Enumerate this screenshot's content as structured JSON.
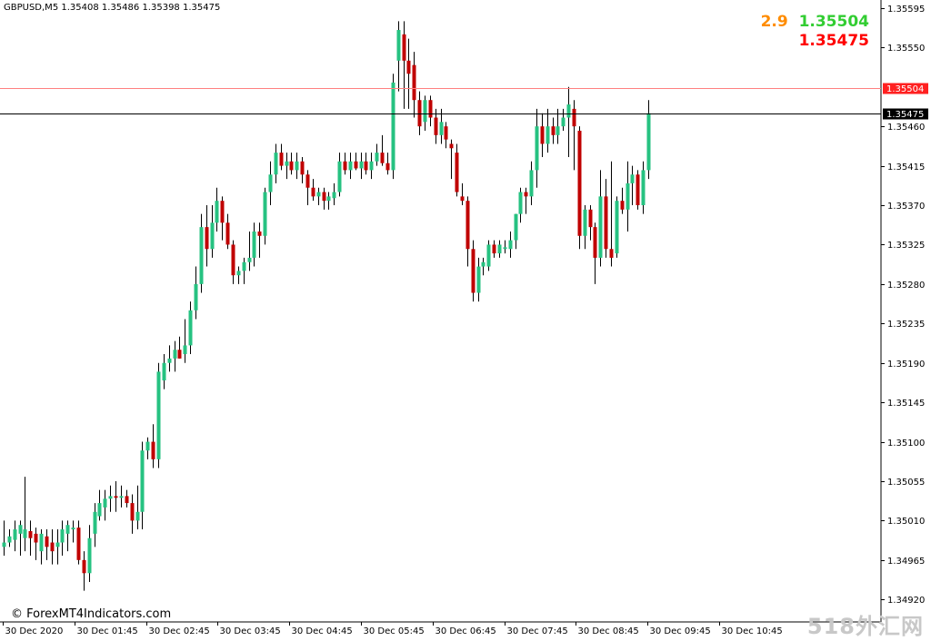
{
  "header": {
    "symbol": "GBPUSD,M5",
    "ohlc": "1.35408 1.35486 1.35398 1.35475"
  },
  "spread_panel": {
    "spread": "2.9",
    "ask": "1.35504",
    "bid": "1.35475",
    "spread_color": "#ff8c00",
    "ask_color": "#32cd32",
    "bid_color": "#ff0000"
  },
  "footer": {
    "copyright": "© ForexMT4Indicators.com",
    "watermark": "518外汇网"
  },
  "colors": {
    "bull": "#26c281",
    "bear": "#c00000",
    "wick": "#000000",
    "ask_line": "#ff8080",
    "bid_line": "#000000",
    "axis": "#000000"
  },
  "chart_data": {
    "type": "candlestick",
    "symbol": "GBPUSD",
    "timeframe": "M5",
    "ylim": [
      1.34913,
      1.35598
    ],
    "price_ticks": [
      "1.35595",
      "1.35550",
      "1.35460",
      "1.35415",
      "1.35370",
      "1.35325",
      "1.35280",
      "1.35235",
      "1.35190",
      "1.35145",
      "1.35100",
      "1.35055",
      "1.35010",
      "1.34965",
      "1.34920"
    ],
    "time_labels": [
      "30 Dec 2020",
      "30 Dec 01:45",
      "30 Dec 02:45",
      "30 Dec 03:45",
      "30 Dec 04:45",
      "30 Dec 05:45",
      "30 Dec 06:45",
      "30 Dec 07:45",
      "30 Dec 08:45",
      "30 Dec 09:45",
      "30 Dec 10:45"
    ],
    "levels": [
      {
        "name": "ask",
        "price": 1.35504,
        "label": "1.35504"
      },
      {
        "name": "bid",
        "price": 1.35475,
        "label": "1.35475"
      }
    ],
    "candles": [
      {
        "o": 1.3498,
        "h": 1.3501,
        "l": 1.3497,
        "c": 1.34985
      },
      {
        "o": 1.34985,
        "h": 1.35,
        "l": 1.3498,
        "c": 1.34992
      },
      {
        "o": 1.34988,
        "h": 1.3501,
        "l": 1.34975,
        "c": 1.35
      },
      {
        "o": 1.34995,
        "h": 1.3501,
        "l": 1.3497,
        "c": 1.35005
      },
      {
        "o": 1.3499,
        "h": 1.3506,
        "l": 1.34975,
        "c": 1.35
      },
      {
        "o": 1.34998,
        "h": 1.3501,
        "l": 1.3497,
        "c": 1.3499
      },
      {
        "o": 1.34995,
        "h": 1.35002,
        "l": 1.34965,
        "c": 1.34985
      },
      {
        "o": 1.34975,
        "h": 1.35,
        "l": 1.3496,
        "c": 1.34995
      },
      {
        "o": 1.34992,
        "h": 1.35,
        "l": 1.34965,
        "c": 1.3498
      },
      {
        "o": 1.34985,
        "h": 1.35,
        "l": 1.3496,
        "c": 1.34975
      },
      {
        "o": 1.3498,
        "h": 1.35,
        "l": 1.3496,
        "c": 1.34985
      },
      {
        "o": 1.34985,
        "h": 1.3501,
        "l": 1.3497,
        "c": 1.35
      },
      {
        "o": 1.34995,
        "h": 1.3501,
        "l": 1.34975,
        "c": 1.35005
      },
      {
        "o": 1.35,
        "h": 1.3501,
        "l": 1.34985,
        "c": 1.35002
      },
      {
        "o": 1.35002,
        "h": 1.3501,
        "l": 1.3496,
        "c": 1.34965
      },
      {
        "o": 1.34965,
        "h": 1.34975,
        "l": 1.3493,
        "c": 1.3495
      },
      {
        "o": 1.3495,
        "h": 1.35005,
        "l": 1.3494,
        "c": 1.3499
      },
      {
        "o": 1.34995,
        "h": 1.3503,
        "l": 1.3498,
        "c": 1.3502
      },
      {
        "o": 1.35015,
        "h": 1.35045,
        "l": 1.3501,
        "c": 1.3503
      },
      {
        "o": 1.35025,
        "h": 1.35045,
        "l": 1.3501,
        "c": 1.35035
      },
      {
        "o": 1.35035,
        "h": 1.3505,
        "l": 1.3502,
        "c": 1.35038
      },
      {
        "o": 1.35038,
        "h": 1.35055,
        "l": 1.3502,
        "c": 1.35036
      },
      {
        "o": 1.35036,
        "h": 1.3505,
        "l": 1.35025,
        "c": 1.35038
      },
      {
        "o": 1.35038,
        "h": 1.35045,
        "l": 1.35025,
        "c": 1.3503
      },
      {
        "o": 1.3503,
        "h": 1.3504,
        "l": 1.34995,
        "c": 1.3501
      },
      {
        "o": 1.3501,
        "h": 1.3505,
        "l": 1.35,
        "c": 1.3502
      },
      {
        "o": 1.3502,
        "h": 1.351,
        "l": 1.35,
        "c": 1.3509
      },
      {
        "o": 1.3509,
        "h": 1.35105,
        "l": 1.3508,
        "c": 1.351
      },
      {
        "o": 1.351,
        "h": 1.3512,
        "l": 1.3507,
        "c": 1.3508
      },
      {
        "o": 1.3508,
        "h": 1.3519,
        "l": 1.3507,
        "c": 1.3518
      },
      {
        "o": 1.3517,
        "h": 1.352,
        "l": 1.3516,
        "c": 1.3519
      },
      {
        "o": 1.3519,
        "h": 1.3521,
        "l": 1.3518,
        "c": 1.35195
      },
      {
        "o": 1.35195,
        "h": 1.35215,
        "l": 1.3518,
        "c": 1.35205
      },
      {
        "o": 1.35205,
        "h": 1.3522,
        "l": 1.35195,
        "c": 1.35195
      },
      {
        "o": 1.352,
        "h": 1.3524,
        "l": 1.3519,
        "c": 1.3521
      },
      {
        "o": 1.3521,
        "h": 1.3526,
        "l": 1.352,
        "c": 1.3525
      },
      {
        "o": 1.3525,
        "h": 1.353,
        "l": 1.3524,
        "c": 1.3528
      },
      {
        "o": 1.3528,
        "h": 1.3536,
        "l": 1.3527,
        "c": 1.35345
      },
      {
        "o": 1.35345,
        "h": 1.3537,
        "l": 1.353,
        "c": 1.3532
      },
      {
        "o": 1.3532,
        "h": 1.3537,
        "l": 1.3531,
        "c": 1.3535
      },
      {
        "o": 1.3535,
        "h": 1.3539,
        "l": 1.3534,
        "c": 1.35375
      },
      {
        "o": 1.35375,
        "h": 1.3538,
        "l": 1.3533,
        "c": 1.3535
      },
      {
        "o": 1.3535,
        "h": 1.3536,
        "l": 1.3532,
        "c": 1.35325
      },
      {
        "o": 1.35325,
        "h": 1.3533,
        "l": 1.3528,
        "c": 1.3529
      },
      {
        "o": 1.3529,
        "h": 1.353,
        "l": 1.3528,
        "c": 1.35295
      },
      {
        "o": 1.35295,
        "h": 1.3531,
        "l": 1.3528,
        "c": 1.35305
      },
      {
        "o": 1.35305,
        "h": 1.3534,
        "l": 1.35295,
        "c": 1.3531
      },
      {
        "o": 1.3531,
        "h": 1.3535,
        "l": 1.353,
        "c": 1.3534
      },
      {
        "o": 1.3534,
        "h": 1.3535,
        "l": 1.3531,
        "c": 1.35335
      },
      {
        "o": 1.35335,
        "h": 1.3539,
        "l": 1.35325,
        "c": 1.35385
      },
      {
        "o": 1.35385,
        "h": 1.3542,
        "l": 1.3537,
        "c": 1.35405
      },
      {
        "o": 1.35405,
        "h": 1.3544,
        "l": 1.35395,
        "c": 1.3543
      },
      {
        "o": 1.3543,
        "h": 1.3544,
        "l": 1.3541,
        "c": 1.35415
      },
      {
        "o": 1.35415,
        "h": 1.3543,
        "l": 1.354,
        "c": 1.3542
      },
      {
        "o": 1.3542,
        "h": 1.3543,
        "l": 1.35405,
        "c": 1.3541
      },
      {
        "o": 1.3541,
        "h": 1.3543,
        "l": 1.354,
        "c": 1.3542
      },
      {
        "o": 1.3542,
        "h": 1.35425,
        "l": 1.35395,
        "c": 1.35405
      },
      {
        "o": 1.35405,
        "h": 1.3541,
        "l": 1.3537,
        "c": 1.3539
      },
      {
        "o": 1.3539,
        "h": 1.354,
        "l": 1.35375,
        "c": 1.3538
      },
      {
        "o": 1.3538,
        "h": 1.3539,
        "l": 1.3537,
        "c": 1.35385
      },
      {
        "o": 1.35385,
        "h": 1.3539,
        "l": 1.35365,
        "c": 1.35375
      },
      {
        "o": 1.35375,
        "h": 1.35385,
        "l": 1.35365,
        "c": 1.3538
      },
      {
        "o": 1.35378,
        "h": 1.35395,
        "l": 1.3537,
        "c": 1.35385
      },
      {
        "o": 1.35385,
        "h": 1.3543,
        "l": 1.3538,
        "c": 1.3542
      },
      {
        "o": 1.3542,
        "h": 1.3543,
        "l": 1.35405,
        "c": 1.3541
      },
      {
        "o": 1.3541,
        "h": 1.3543,
        "l": 1.354,
        "c": 1.3542
      },
      {
        "o": 1.3542,
        "h": 1.3543,
        "l": 1.3541,
        "c": 1.35412
      },
      {
        "o": 1.35412,
        "h": 1.3543,
        "l": 1.354,
        "c": 1.3542
      },
      {
        "o": 1.3542,
        "h": 1.3543,
        "l": 1.35405,
        "c": 1.3541
      },
      {
        "o": 1.3541,
        "h": 1.3543,
        "l": 1.354,
        "c": 1.3542
      },
      {
        "o": 1.3542,
        "h": 1.3544,
        "l": 1.35415,
        "c": 1.3543
      },
      {
        "o": 1.3543,
        "h": 1.3545,
        "l": 1.35415,
        "c": 1.35418
      },
      {
        "o": 1.35418,
        "h": 1.3543,
        "l": 1.35405,
        "c": 1.3541
      },
      {
        "o": 1.3541,
        "h": 1.3552,
        "l": 1.354,
        "c": 1.3551
      },
      {
        "o": 1.35535,
        "h": 1.3558,
        "l": 1.355,
        "c": 1.3557
      },
      {
        "o": 1.35565,
        "h": 1.3558,
        "l": 1.3548,
        "c": 1.35535
      },
      {
        "o": 1.35535,
        "h": 1.3556,
        "l": 1.3548,
        "c": 1.3552
      },
      {
        "o": 1.3553,
        "h": 1.35545,
        "l": 1.3547,
        "c": 1.3549
      },
      {
        "o": 1.3549,
        "h": 1.355,
        "l": 1.3545,
        "c": 1.3546
      },
      {
        "o": 1.35465,
        "h": 1.35495,
        "l": 1.35455,
        "c": 1.3549
      },
      {
        "o": 1.3549,
        "h": 1.35495,
        "l": 1.3546,
        "c": 1.3547
      },
      {
        "o": 1.3547,
        "h": 1.3548,
        "l": 1.3544,
        "c": 1.3545
      },
      {
        "o": 1.3545,
        "h": 1.3548,
        "l": 1.3544,
        "c": 1.35465
      },
      {
        "o": 1.3546,
        "h": 1.35465,
        "l": 1.35435,
        "c": 1.35445
      },
      {
        "o": 1.3544,
        "h": 1.35445,
        "l": 1.354,
        "c": 1.35435
      },
      {
        "o": 1.3543,
        "h": 1.3544,
        "l": 1.3538,
        "c": 1.35385
      },
      {
        "o": 1.3538,
        "h": 1.35395,
        "l": 1.3537,
        "c": 1.35375
      },
      {
        "o": 1.35375,
        "h": 1.3538,
        "l": 1.353,
        "c": 1.3532
      },
      {
        "o": 1.3532,
        "h": 1.3533,
        "l": 1.3526,
        "c": 1.3527
      },
      {
        "o": 1.3527,
        "h": 1.3531,
        "l": 1.3526,
        "c": 1.353
      },
      {
        "o": 1.353,
        "h": 1.3531,
        "l": 1.3529,
        "c": 1.35305
      },
      {
        "o": 1.353,
        "h": 1.3533,
        "l": 1.35295,
        "c": 1.35325
      },
      {
        "o": 1.35325,
        "h": 1.3533,
        "l": 1.3531,
        "c": 1.35315
      },
      {
        "o": 1.35315,
        "h": 1.3533,
        "l": 1.3531,
        "c": 1.35325
      },
      {
        "o": 1.3532,
        "h": 1.3533,
        "l": 1.35315,
        "c": 1.35322
      },
      {
        "o": 1.3532,
        "h": 1.3534,
        "l": 1.3531,
        "c": 1.3533
      },
      {
        "o": 1.3533,
        "h": 1.3536,
        "l": 1.3532,
        "c": 1.3536
      },
      {
        "o": 1.3536,
        "h": 1.3539,
        "l": 1.3535,
        "c": 1.35385
      },
      {
        "o": 1.35385,
        "h": 1.3539,
        "l": 1.3536,
        "c": 1.3538
      },
      {
        "o": 1.3538,
        "h": 1.3542,
        "l": 1.3537,
        "c": 1.3541
      },
      {
        "o": 1.3541,
        "h": 1.3548,
        "l": 1.3539,
        "c": 1.3546
      },
      {
        "o": 1.3546,
        "h": 1.35475,
        "l": 1.35425,
        "c": 1.3544
      },
      {
        "o": 1.3544,
        "h": 1.3548,
        "l": 1.3543,
        "c": 1.3546
      },
      {
        "o": 1.3546,
        "h": 1.3547,
        "l": 1.3544,
        "c": 1.3545
      },
      {
        "o": 1.3545,
        "h": 1.3548,
        "l": 1.3544,
        "c": 1.3546
      },
      {
        "o": 1.3546,
        "h": 1.3548,
        "l": 1.35455,
        "c": 1.3547
      },
      {
        "o": 1.3547,
        "h": 1.35505,
        "l": 1.35425,
        "c": 1.35485
      },
      {
        "o": 1.3548,
        "h": 1.3549,
        "l": 1.3541,
        "c": 1.3546
      },
      {
        "o": 1.35455,
        "h": 1.3546,
        "l": 1.3532,
        "c": 1.35335
      },
      {
        "o": 1.35335,
        "h": 1.3537,
        "l": 1.3532,
        "c": 1.35365
      },
      {
        "o": 1.35365,
        "h": 1.3537,
        "l": 1.3533,
        "c": 1.35345
      },
      {
        "o": 1.35345,
        "h": 1.3535,
        "l": 1.3528,
        "c": 1.3531
      },
      {
        "o": 1.3531,
        "h": 1.3541,
        "l": 1.353,
        "c": 1.3538
      },
      {
        "o": 1.3538,
        "h": 1.354,
        "l": 1.3531,
        "c": 1.3532
      },
      {
        "o": 1.3532,
        "h": 1.3542,
        "l": 1.353,
        "c": 1.3531
      },
      {
        "o": 1.35315,
        "h": 1.3538,
        "l": 1.3531,
        "c": 1.35375
      },
      {
        "o": 1.35375,
        "h": 1.3539,
        "l": 1.3536,
        "c": 1.35365
      },
      {
        "o": 1.35365,
        "h": 1.3542,
        "l": 1.3534,
        "c": 1.35395
      },
      {
        "o": 1.35395,
        "h": 1.35415,
        "l": 1.3537,
        "c": 1.35405
      },
      {
        "o": 1.35405,
        "h": 1.3541,
        "l": 1.35365,
        "c": 1.3537
      },
      {
        "o": 1.3537,
        "h": 1.3542,
        "l": 1.3536,
        "c": 1.3541
      },
      {
        "o": 1.3541,
        "h": 1.3549,
        "l": 1.354,
        "c": 1.35475
      }
    ]
  }
}
